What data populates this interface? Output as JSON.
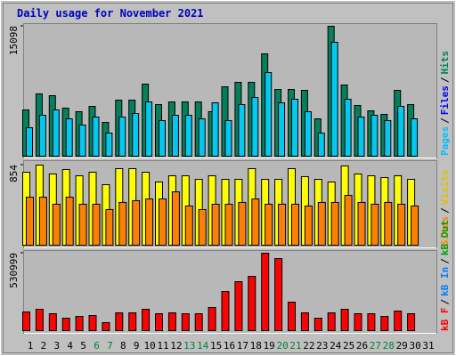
{
  "chart_data": [
    {
      "type": "bar",
      "title": "Daily usage for November 2021",
      "categories": [
        "1",
        "2",
        "3",
        "4",
        "5",
        "6",
        "7",
        "8",
        "9",
        "10",
        "11",
        "12",
        "13",
        "14",
        "15",
        "16",
        "17",
        "18",
        "19",
        "20",
        "21",
        "22",
        "23",
        "24",
        "25",
        "26",
        "27",
        "28",
        "29",
        "30",
        "31"
      ],
      "weekends": [
        "6",
        "7",
        "13",
        "14",
        "20",
        "21",
        "27",
        "28"
      ],
      "weekend_color": "#008040",
      "series": [
        {
          "color": "#00805c",
          "values": [
            5377,
            7239,
            7032,
            5584,
            5170,
            5791,
            3930,
            6515,
            6515,
            8376,
            5998,
            6308,
            6308,
            6308,
            5170,
            8066,
            8583,
            8583,
            11892,
            7756,
            7756,
            7652,
            4343,
            15098,
            8273,
            5894,
            5274,
            4860,
            7652,
            5998,
            null
          ]
        },
        {
          "color": "#00c8f0",
          "values": [
            3309,
            4757,
            5377,
            4343,
            3619,
            4550,
            2689,
            4550,
            4964,
            6308,
            4136,
            4757,
            4757,
            4343,
            6205,
            4136,
            5998,
            6825,
            9721,
            6205,
            6618,
            5170,
            2689,
            13236,
            6618,
            4550,
            4757,
            4136,
            5791,
            4343,
            null
          ]
        }
      ],
      "legend": [
        {
          "name": "Pages",
          "color": "#00c0ff"
        },
        {
          "name": "Files",
          "color": "#0000ff"
        },
        {
          "name": "Hits",
          "color": "#00805c"
        }
      ],
      "legend_separator": "/",
      "ylim": [
        0,
        15098
      ],
      "yticks": [
        15098
      ]
    },
    {
      "type": "bar",
      "series": [
        {
          "color": "#ffff00",
          "values": [
            778,
            854,
            759,
            807,
            740,
            778,
            645,
            816,
            816,
            778,
            674,
            740,
            740,
            702,
            740,
            702,
            702,
            816,
            702,
            702,
            816,
            731,
            702,
            674,
            845,
            759,
            740,
            721,
            740,
            702,
            null
          ]
        },
        {
          "color": "#ff8000",
          "values": [
            512,
            512,
            437,
            512,
            437,
            437,
            380,
            456,
            475,
            493,
            493,
            569,
            418,
            380,
            437,
            437,
            456,
            493,
            437,
            437,
            437,
            418,
            456,
            456,
            531,
            456,
            437,
            456,
            437,
            418,
            null
          ]
        }
      ],
      "legend": [
        {
          "name": "Sites",
          "color": "#ff8000"
        },
        {
          "name": "Visits",
          "color": "#e0c000"
        }
      ],
      "legend_separator": "/",
      "ylim": [
        0,
        854
      ],
      "yticks": [
        854
      ]
    },
    {
      "type": "bar",
      "series": [
        {
          "color": "#ff0000",
          "values": [
            128163,
            146472,
            115957,
            85442,
            97648,
            103751,
            54927,
            122060,
            122060,
            146472,
            115957,
            122060,
            115957,
            115957,
            158678,
            268532,
            335659,
            372283,
            530999,
            494343,
            195292,
            122060,
            85442,
            122060,
            146472,
            115957,
            115957,
            97648,
            134266,
            115957,
            null
          ]
        }
      ],
      "legend": [
        {
          "name": "kB F",
          "color": "#ff0000"
        },
        {
          "name": "kB In",
          "color": "#0080ff"
        },
        {
          "name": "kB Out",
          "color": "#00a000"
        }
      ],
      "legend_separator": "/",
      "ylim": [
        0,
        530999
      ],
      "yticks": [
        530999
      ]
    }
  ]
}
